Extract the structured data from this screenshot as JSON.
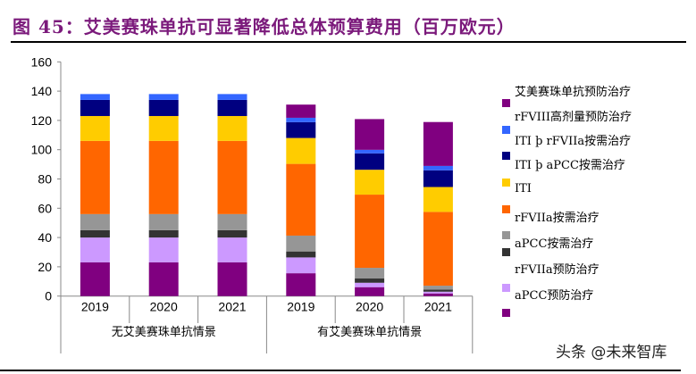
{
  "title": "图 45：艾美赛珠单抗可显著降低总体预算费用（百万欧元）",
  "watermark": "头条 @未来智库",
  "chart_data": {
    "type": "bar",
    "stacked": true,
    "title": "图 45：艾美赛珠单抗可显著降低总体预算费用（百万欧元）",
    "ylabel": "",
    "xlabel": "",
    "ylim": [
      0,
      160
    ],
    "yticks": [
      "0",
      "20",
      "40",
      "60",
      "80",
      "100",
      "120",
      "140",
      "160"
    ],
    "grid": false,
    "legend_position": "right",
    "categories": [
      "2019",
      "2020",
      "2021",
      "2019",
      "2020",
      "2021"
    ],
    "groups": [
      {
        "label": "无艾美赛珠单抗情景",
        "count": 3
      },
      {
        "label": "有艾美赛珠单抗情景",
        "count": 3
      }
    ],
    "series": [
      {
        "name": "aPCC预防治疗",
        "color": "#800080",
        "values": [
          23,
          23,
          23,
          15.6,
          6.1,
          1.8
        ]
      },
      {
        "name": "rFVIIa预防治疗",
        "color": "#cc99ff",
        "values": [
          17,
          17,
          17,
          10.8,
          3,
          1.2
        ]
      },
      {
        "name": "",
        "color": "#333333",
        "values": [
          5,
          5,
          5,
          4.1,
          2.9,
          1.5
        ]
      },
      {
        "name": "aPCC按需治疗",
        "color": "#969696",
        "values": [
          11,
          11,
          11,
          10.8,
          7.3,
          2.6
        ]
      },
      {
        "name": "rFVIIa按需治疗",
        "color": "#ff6600",
        "values": [
          50,
          50,
          50,
          49,
          50,
          50.4
        ]
      },
      {
        "name": "ITI",
        "color": "#ffcc00",
        "values": [
          17,
          17,
          17,
          17.7,
          17,
          17
        ]
      },
      {
        "name": "ITI þ aPCC按需治疗",
        "color": "#000080",
        "values": [
          11,
          11,
          11,
          10.8,
          11.2,
          11.4
        ]
      },
      {
        "name": "rFVIII高剂量预防治疗",
        "color": "#3366ff",
        "values": [
          4,
          4,
          4,
          3,
          2.4,
          3
        ]
      },
      {
        "name": "艾美赛珠单抗预防治疗",
        "color": "#800080",
        "values": [
          0,
          0,
          0,
          9,
          21,
          30
        ]
      }
    ],
    "legend": {
      "labels": [
        "艾美赛珠单抗预防治疗",
        "rFVIII高剂量预防治疗",
        "ITI þ rFVIIa按需治疗",
        "ITI þ aPCC按需治疗",
        "ITI",
        "rFVIIa按需治疗",
        "aPCC按需治疗",
        "rFVIIa预防治疗",
        "aPCC预防治疗"
      ],
      "swatches": [
        "#800080",
        "#3366ff",
        "#000080",
        "#ffcc00",
        "#ff6600",
        "#969696",
        "#333333",
        "#cc99ff",
        "#800080"
      ]
    }
  }
}
